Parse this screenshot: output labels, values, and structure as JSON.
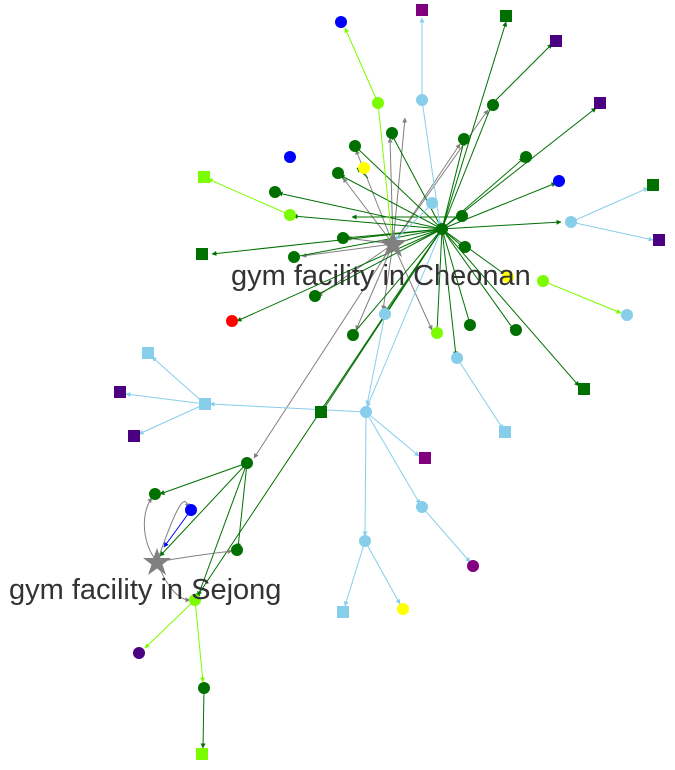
{
  "labels": {
    "cheonan": "gym facility in Cheonan",
    "sejong": "gym facility in Sejong"
  },
  "colors": {
    "dark_green": "#007000",
    "light_blue": "#87ceeb",
    "light_green": "#7cfc00",
    "indigo": "#4b0082",
    "purple": "#800080",
    "blue": "#0000ff",
    "yellow": "#ffff00",
    "red": "#ff0000",
    "gray": "#808080"
  }
}
